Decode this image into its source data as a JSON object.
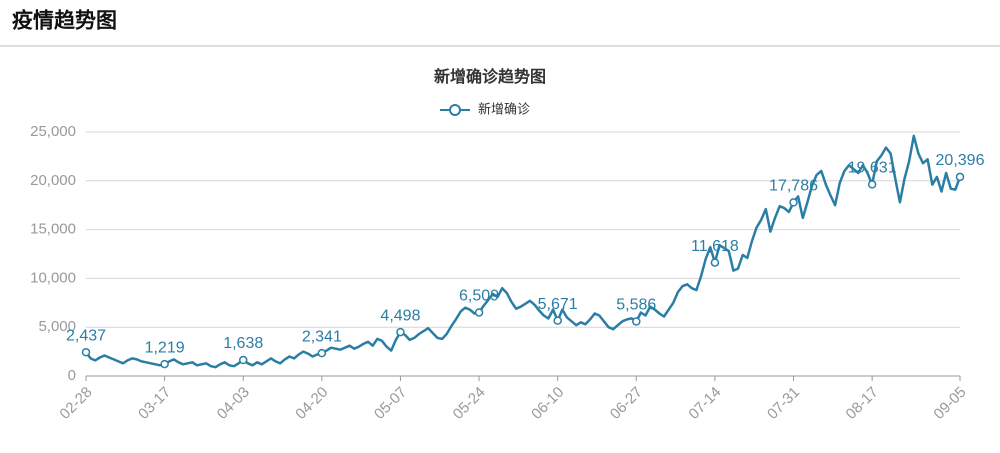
{
  "header": {
    "title": "疫情趋势图"
  },
  "chart_data": {
    "type": "line",
    "title": "新增确诊趋势图",
    "categories": [
      "02-28",
      null,
      null,
      null,
      null,
      null,
      null,
      null,
      null,
      null,
      null,
      null,
      null,
      null,
      null,
      null,
      null,
      "03-17",
      null,
      null,
      null,
      null,
      null,
      null,
      null,
      null,
      null,
      null,
      null,
      null,
      null,
      null,
      null,
      null,
      "04-03",
      null,
      null,
      null,
      null,
      null,
      null,
      null,
      null,
      null,
      null,
      null,
      null,
      null,
      null,
      null,
      null,
      "04-20",
      null,
      null,
      null,
      null,
      null,
      null,
      null,
      null,
      null,
      null,
      null,
      null,
      null,
      null,
      null,
      null,
      "05-07",
      null,
      null,
      null,
      null,
      null,
      null,
      null,
      null,
      null,
      null,
      null,
      null,
      null,
      null,
      null,
      null,
      "05-24",
      null,
      null,
      null,
      null,
      null,
      null,
      null,
      null,
      null,
      null,
      null,
      null,
      null,
      null,
      null,
      null,
      "06-10",
      null,
      null,
      null,
      null,
      null,
      null,
      null,
      null,
      null,
      null,
      null,
      null,
      null,
      null,
      null,
      null,
      "06-27",
      null,
      null,
      null,
      null,
      null,
      null,
      null,
      null,
      null,
      null,
      null,
      null,
      null,
      null,
      null,
      null,
      "07-14",
      null,
      null,
      null,
      null,
      null,
      null,
      null,
      null,
      null,
      null,
      null,
      null,
      null,
      null,
      null,
      null,
      "07-31",
      null,
      null,
      null,
      null,
      null,
      null,
      null,
      null,
      null,
      null,
      null,
      null,
      null,
      null,
      null,
      null,
      "08-17",
      null,
      null,
      null,
      null,
      null,
      null,
      null,
      null,
      null,
      null,
      null,
      null,
      null,
      null,
      null,
      null,
      null,
      null,
      "09-05"
    ],
    "series": [
      {
        "name": "新增确诊",
        "color": "#2a7ea6",
        "values": [
          2437,
          1800,
          1600,
          1900,
          2100,
          1900,
          1700,
          1500,
          1300,
          1600,
          1800,
          1700,
          1500,
          1400,
          1300,
          1200,
          1100,
          1219,
          1500,
          1700,
          1400,
          1200,
          1300,
          1400,
          1100,
          1200,
          1300,
          1000,
          900,
          1200,
          1400,
          1100,
          1000,
          1300,
          1638,
          1300,
          1100,
          1400,
          1200,
          1500,
          1800,
          1500,
          1300,
          1700,
          2000,
          1800,
          2200,
          2500,
          2300,
          2000,
          2200,
          2341,
          2600,
          2900,
          2800,
          2700,
          2900,
          3100,
          2800,
          3000,
          3300,
          3500,
          3100,
          3800,
          3600,
          3000,
          2600,
          3700,
          4498,
          4200,
          3700,
          3900,
          4300,
          4600,
          4900,
          4400,
          3900,
          3800,
          4300,
          5100,
          5800,
          6600,
          7000,
          6800,
          6400,
          6509,
          7200,
          7800,
          8400,
          8100,
          9000,
          8500,
          7600,
          6900,
          7100,
          7400,
          7700,
          7300,
          6700,
          6200,
          5900,
          6800,
          5671,
          6800,
          6000,
          5600,
          5200,
          5500,
          5300,
          5800,
          6400,
          6200,
          5600,
          5000,
          4800,
          5200,
          5600,
          5800,
          5900,
          5586,
          6500,
          6200,
          7100,
          6800,
          6400,
          6100,
          6800,
          7500,
          8600,
          9200,
          9400,
          9000,
          8800,
          10200,
          12000,
          13200,
          11618,
          13400,
          13100,
          12800,
          10800,
          11000,
          12400,
          12100,
          13800,
          15200,
          16000,
          17100,
          14800,
          16200,
          17400,
          17200,
          16800,
          17786,
          18400,
          16200,
          17800,
          19500,
          20600,
          21000,
          19600,
          18500,
          17500,
          19800,
          21000,
          21600,
          21200,
          20800,
          21600,
          20800,
          19631,
          22000,
          22600,
          23400,
          22800,
          20200,
          17800,
          20200,
          22000,
          24600,
          22800,
          21800,
          22200,
          19600,
          20400,
          18900,
          20800,
          19200,
          19100,
          20396
        ],
        "value_labels": [
          "2,437",
          null,
          null,
          null,
          null,
          null,
          null,
          null,
          null,
          null,
          null,
          null,
          null,
          null,
          null,
          null,
          null,
          "1,219",
          null,
          null,
          null,
          null,
          null,
          null,
          null,
          null,
          null,
          null,
          null,
          null,
          null,
          null,
          null,
          null,
          "1,638",
          null,
          null,
          null,
          null,
          null,
          null,
          null,
          null,
          null,
          null,
          null,
          null,
          null,
          null,
          null,
          null,
          "2,341",
          null,
          null,
          null,
          null,
          null,
          null,
          null,
          null,
          null,
          null,
          null,
          null,
          null,
          null,
          null,
          null,
          "4,498",
          null,
          null,
          null,
          null,
          null,
          null,
          null,
          null,
          null,
          null,
          null,
          null,
          null,
          null,
          null,
          null,
          "6,509",
          null,
          null,
          null,
          null,
          null,
          null,
          null,
          null,
          null,
          null,
          null,
          null,
          null,
          null,
          null,
          null,
          "5,671",
          null,
          null,
          null,
          null,
          null,
          null,
          null,
          null,
          null,
          null,
          null,
          null,
          null,
          null,
          null,
          null,
          "5,586",
          null,
          null,
          null,
          null,
          null,
          null,
          null,
          null,
          null,
          null,
          null,
          null,
          null,
          null,
          null,
          null,
          "11,618",
          null,
          null,
          null,
          null,
          null,
          null,
          null,
          null,
          null,
          null,
          null,
          null,
          null,
          null,
          null,
          null,
          "17,786",
          null,
          null,
          null,
          null,
          null,
          null,
          null,
          null,
          null,
          null,
          null,
          null,
          null,
          null,
          null,
          null,
          "19,631",
          null,
          null,
          null,
          null,
          null,
          null,
          null,
          null,
          null,
          null,
          null,
          null,
          null,
          null,
          null,
          null,
          null,
          null,
          "20,396"
        ]
      }
    ],
    "ylim": [
      0,
      25000
    ],
    "yticks": [
      0,
      {
        "value": 5000,
        "label": "5,000"
      },
      {
        "value": 10000,
        "label": "10,000"
      },
      {
        "value": 15000,
        "label": "15,000"
      },
      {
        "value": 20000,
        "label": "20,000"
      },
      {
        "value": 25000,
        "label": "25,000"
      }
    ],
    "grid": true,
    "legend": "top"
  }
}
